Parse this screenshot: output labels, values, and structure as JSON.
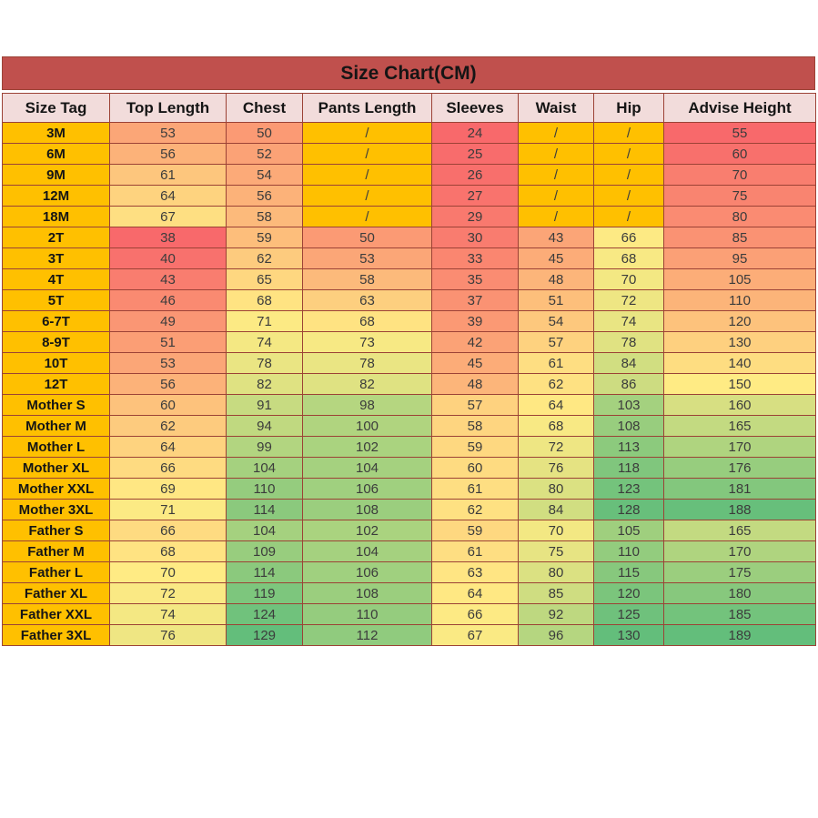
{
  "chart_data": {
    "type": "table",
    "title": "Size Chart(CM)",
    "unit": "CM",
    "columns": [
      "Size Tag",
      "Top Length",
      "Chest",
      "Pants Length",
      "Sleeves",
      "Waist",
      "Hip",
      "Advise Height"
    ],
    "rows": [
      {
        "tag": "3M",
        "values": [
          "53",
          "50",
          "/",
          "24",
          "/",
          "/",
          "55"
        ]
      },
      {
        "tag": "6M",
        "values": [
          "56",
          "52",
          "/",
          "25",
          "/",
          "/",
          "60"
        ]
      },
      {
        "tag": "9M",
        "values": [
          "61",
          "54",
          "/",
          "26",
          "/",
          "/",
          "70"
        ]
      },
      {
        "tag": "12M",
        "values": [
          "64",
          "56",
          "/",
          "27",
          "/",
          "/",
          "75"
        ]
      },
      {
        "tag": "18M",
        "values": [
          "67",
          "58",
          "/",
          "29",
          "/",
          "/",
          "80"
        ]
      },
      {
        "tag": "2T",
        "values": [
          "38",
          "59",
          "50",
          "30",
          "43",
          "66",
          "85"
        ]
      },
      {
        "tag": "3T",
        "values": [
          "40",
          "62",
          "53",
          "33",
          "45",
          "68",
          "95"
        ]
      },
      {
        "tag": "4T",
        "values": [
          "43",
          "65",
          "58",
          "35",
          "48",
          "70",
          "105"
        ]
      },
      {
        "tag": "5T",
        "values": [
          "46",
          "68",
          "63",
          "37",
          "51",
          "72",
          "110"
        ]
      },
      {
        "tag": "6-7T",
        "values": [
          "49",
          "71",
          "68",
          "39",
          "54",
          "74",
          "120"
        ]
      },
      {
        "tag": "8-9T",
        "values": [
          "51",
          "74",
          "73",
          "42",
          "57",
          "78",
          "130"
        ]
      },
      {
        "tag": "10T",
        "values": [
          "53",
          "78",
          "78",
          "45",
          "61",
          "84",
          "140"
        ]
      },
      {
        "tag": "12T",
        "values": [
          "56",
          "82",
          "82",
          "48",
          "62",
          "86",
          "150"
        ]
      },
      {
        "tag": "Mother S",
        "values": [
          "60",
          "91",
          "98",
          "57",
          "64",
          "103",
          "160"
        ]
      },
      {
        "tag": "Mother M",
        "values": [
          "62",
          "94",
          "100",
          "58",
          "68",
          "108",
          "165"
        ]
      },
      {
        "tag": "Mother L",
        "values": [
          "64",
          "99",
          "102",
          "59",
          "72",
          "113",
          "170"
        ]
      },
      {
        "tag": "Mother XL",
        "values": [
          "66",
          "104",
          "104",
          "60",
          "76",
          "118",
          "176"
        ]
      },
      {
        "tag": "Mother XXL",
        "values": [
          "69",
          "110",
          "106",
          "61",
          "80",
          "123",
          "181"
        ]
      },
      {
        "tag": "Mother 3XL",
        "values": [
          "71",
          "114",
          "108",
          "62",
          "84",
          "128",
          "188"
        ]
      },
      {
        "tag": "Father S",
        "values": [
          "66",
          "104",
          "102",
          "59",
          "70",
          "105",
          "165"
        ]
      },
      {
        "tag": "Father M",
        "values": [
          "68",
          "109",
          "104",
          "61",
          "75",
          "110",
          "170"
        ]
      },
      {
        "tag": "Father L",
        "values": [
          "70",
          "114",
          "106",
          "63",
          "80",
          "115",
          "175"
        ]
      },
      {
        "tag": "Father XL",
        "values": [
          "72",
          "119",
          "108",
          "64",
          "85",
          "120",
          "180"
        ]
      },
      {
        "tag": "Father XXL",
        "values": [
          "74",
          "124",
          "110",
          "66",
          "92",
          "125",
          "185"
        ]
      },
      {
        "tag": "Father 3XL",
        "values": [
          "76",
          "129",
          "112",
          "67",
          "96",
          "130",
          "189"
        ]
      }
    ],
    "heatmap": {
      "description": "3-color conditional-format scale (red to yellow to green) by value, per column group; '/' cells are solid gold",
      "stop_colors": [
        "#F8696B",
        "#FFEB84",
        "#63BE7B"
      ],
      "no_data_marker": "/",
      "column_scales": [
        {
          "column": "Top Length",
          "min": 38,
          "mid": 70,
          "max": 129
        },
        {
          "column": "Chest",
          "min": 38,
          "mid": 70,
          "max": 129
        },
        {
          "column": "Pants Length",
          "min": 38,
          "mid": 70,
          "max": 129
        },
        {
          "column": "Sleeves",
          "min": 24,
          "mid": 65,
          "max": 130
        },
        {
          "column": "Waist",
          "min": 24,
          "mid": 65,
          "max": 130
        },
        {
          "column": "Hip",
          "min": 24,
          "mid": 65,
          "max": 130
        },
        {
          "column": "Advise Height",
          "min": 55,
          "mid": 150,
          "max": 189
        }
      ]
    }
  },
  "colors": {
    "page_bg": "#FFFFFF",
    "title_bg": "#C0504D",
    "title_text": "#151515",
    "header_bg": "#F2DCDB",
    "header_text": "#151515",
    "tag_bg": "#FFC000",
    "tag_text": "#151515",
    "slash_bg": "#FFC000",
    "grid_border": "#9C4236",
    "value_text": "#3C3C3C"
  }
}
